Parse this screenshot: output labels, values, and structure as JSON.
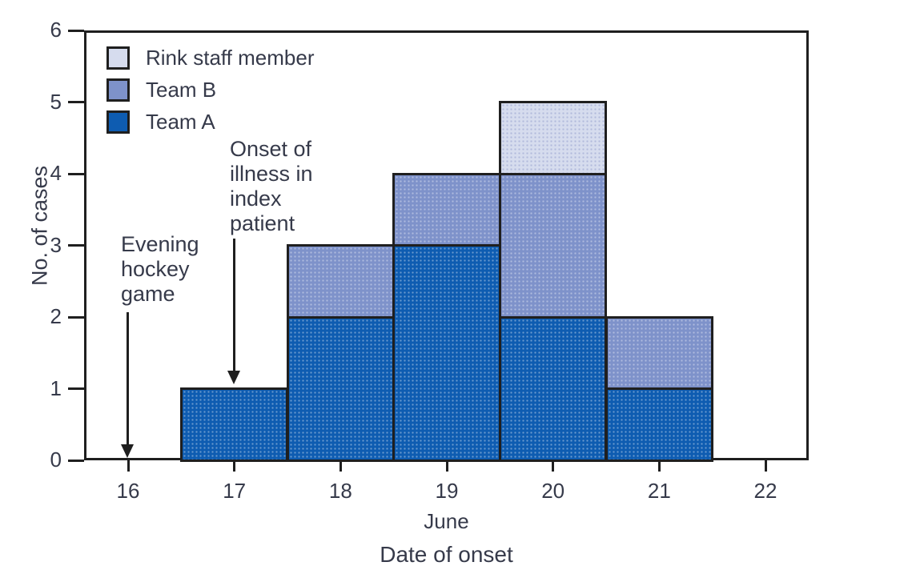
{
  "figure": {
    "y_axis_title": "No. of cases",
    "x_month_label": "June",
    "x_axis_title": "Date of onset"
  },
  "legend": {
    "items": [
      {
        "label": "Rink staff member",
        "color": "#d6dcee"
      },
      {
        "label": "Team B",
        "color": "#7e92ca"
      },
      {
        "label": "Team A",
        "color": "#0e5cb1"
      }
    ]
  },
  "annotations": {
    "hockey_game": {
      "text": "Evening\nhockey\ngame",
      "points_to_x": 16
    },
    "index_patient": {
      "text": "Onset of\nillness in\nindex\npatient",
      "points_to_x": 17
    }
  },
  "chart_data": {
    "type": "bar",
    "stacked": true,
    "title": "",
    "xlabel": "Date of onset",
    "x_month_label": "June",
    "ylabel": "No. of cases",
    "ylim": [
      0,
      6
    ],
    "y_ticks": [
      0,
      1,
      2,
      3,
      4,
      5,
      6
    ],
    "grid": false,
    "legend_position": "top-left",
    "categories": [
      16,
      17,
      18,
      19,
      20,
      21,
      22
    ],
    "series": [
      {
        "name": "Team A",
        "color": "#0e5cb1",
        "values": [
          0,
          1,
          2,
          3,
          2,
          1,
          0
        ]
      },
      {
        "name": "Team B",
        "color": "#7e92ca",
        "values": [
          0,
          0,
          1,
          1,
          2,
          1,
          0
        ]
      },
      {
        "name": "Rink staff member",
        "color": "#d6dcee",
        "values": [
          0,
          0,
          0,
          0,
          1,
          0,
          0
        ]
      }
    ],
    "totals_by_date": [
      0,
      1,
      3,
      4,
      5,
      2,
      0
    ]
  }
}
